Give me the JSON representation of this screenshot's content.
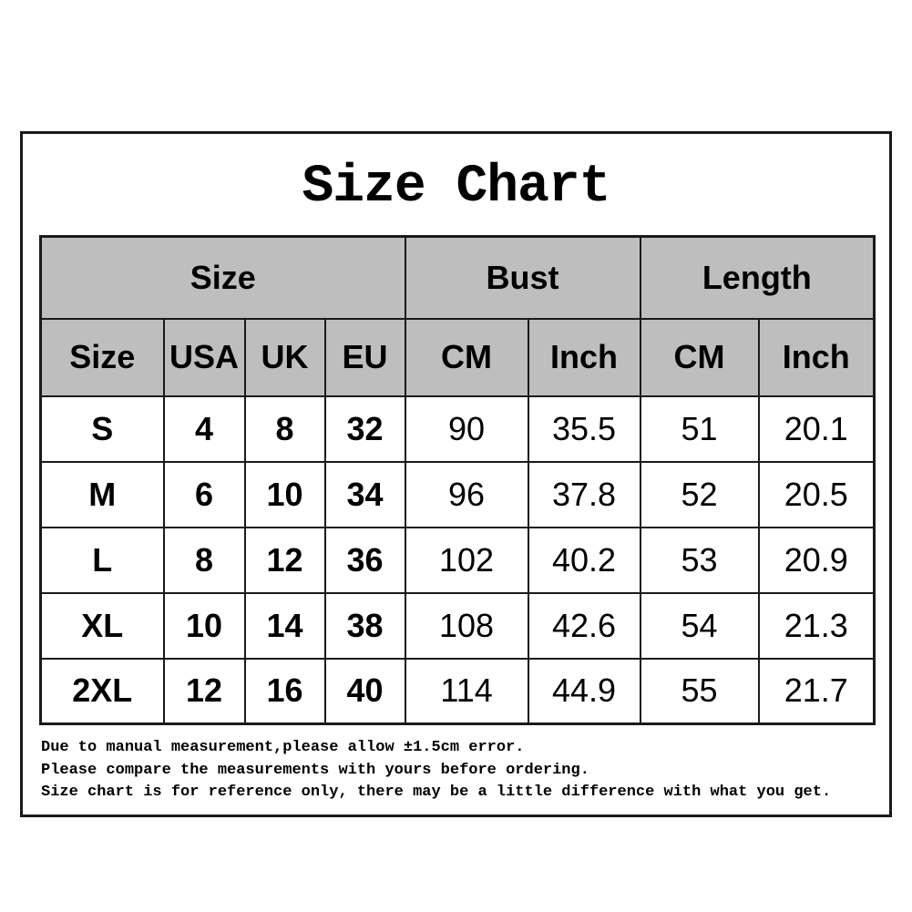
{
  "title": "Size Chart",
  "table": {
    "group_headers": [
      {
        "label": "Size",
        "span": 4
      },
      {
        "label": "Bust",
        "span": 2
      },
      {
        "label": "Length",
        "span": 2
      }
    ],
    "column_headers": [
      "Size",
      "USA",
      "UK",
      "EU",
      "CM",
      "Inch",
      "CM",
      "Inch"
    ],
    "rows": [
      [
        "S",
        "4",
        "8",
        "32",
        "90",
        "35.5",
        "51",
        "20.1"
      ],
      [
        "M",
        "6",
        "10",
        "34",
        "96",
        "37.8",
        "52",
        "20.5"
      ],
      [
        "L",
        "8",
        "12",
        "36",
        "102",
        "40.2",
        "53",
        "20.9"
      ],
      [
        "XL",
        "10",
        "14",
        "38",
        "108",
        "42.6",
        "54",
        "21.3"
      ],
      [
        "2XL",
        "12",
        "16",
        "40",
        "114",
        "44.9",
        "55",
        "21.7"
      ]
    ]
  },
  "notes": [
    "Due to manual measurement,please allow ±1.5cm error.",
    "Please compare the measurements with yours before ordering.",
    "Size chart is for reference only, there may be a little difference with what you get."
  ],
  "colors": {
    "header_bg": "#bebebe",
    "border": "#1a1a1a",
    "text": "#000000",
    "background": "#ffffff"
  }
}
